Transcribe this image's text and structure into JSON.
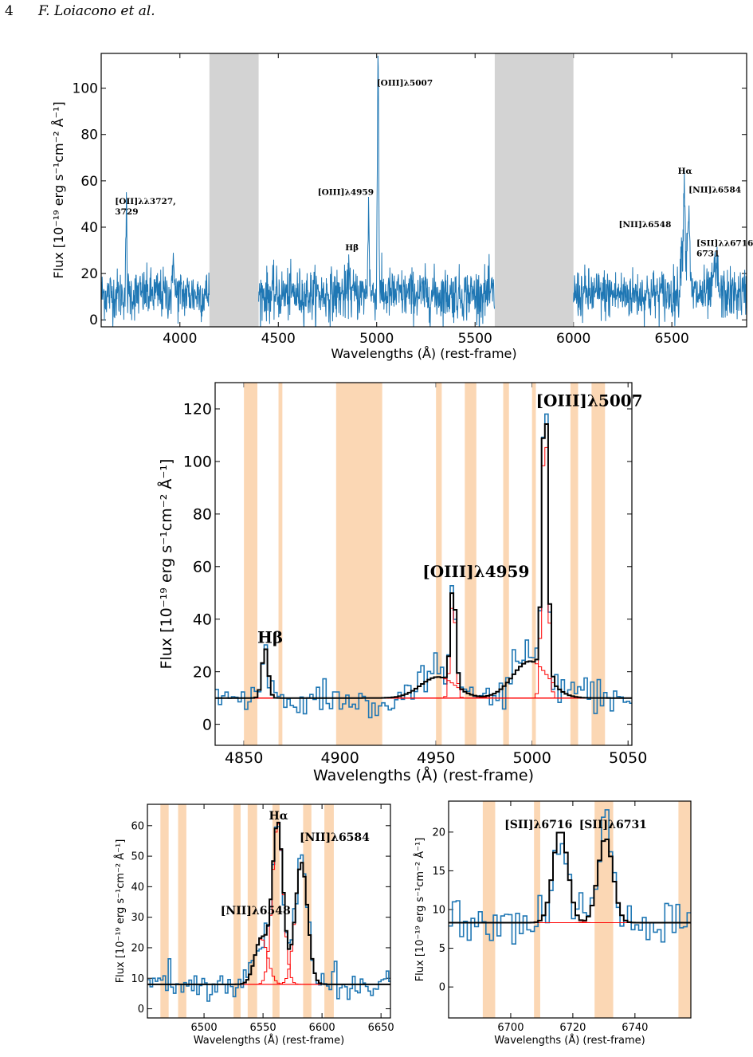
{
  "header": {
    "page_number": "4",
    "authors": "F. Loiacono et al."
  },
  "chart_data": [
    {
      "type": "line",
      "xlabel": "Wavelengths (Å) (rest-frame)",
      "ylabel": "Flux [10⁻¹⁹ erg s⁻¹cm⁻² Å⁻¹]",
      "xlim": [
        3600,
        6880
      ],
      "ylim": [
        -3,
        115
      ],
      "xticks": [
        4000,
        4500,
        5000,
        5500,
        6000,
        6500
      ],
      "yticks": [
        0,
        20,
        40,
        60,
        80,
        100
      ],
      "colors": {
        "spectrum": "#1f77b4",
        "masked": "#d3d3d3"
      },
      "masked_regions": [
        [
          4150,
          4400
        ],
        [
          5600,
          6000
        ]
      ],
      "lines": [
        {
          "name": "[OII]λλ3727, 3729",
          "text": [
            "[OII]λλ3727,",
            "3729"
          ],
          "x": 3728,
          "y": 48,
          "tx": 3670,
          "ty": 50
        },
        {
          "name": "[OIII]λ4959",
          "text": [
            "[OIII]λ4959"
          ],
          "x": 4959,
          "y": 52,
          "tx": 4700,
          "ty": 54
        },
        {
          "name": "Hβ",
          "text": [
            "Hβ"
          ],
          "x": 4861,
          "y": 28,
          "tx": 4840,
          "ty": 30
        },
        {
          "name": "[OIII]λ5007",
          "text": [
            "[OIII]λ5007"
          ],
          "x": 5007,
          "y": 114,
          "tx": 5000,
          "ty": 101
        },
        {
          "name": "Hα",
          "text": [
            "Hα"
          ],
          "x": 6563,
          "y": 62,
          "tx": 6530,
          "ty": 63
        },
        {
          "name": "[NII]λ6584",
          "text": [
            "[NII]λ6584"
          ],
          "x": 6584,
          "y": 56,
          "tx": 6585,
          "ty": 55
        },
        {
          "name": "[NII]λ6548",
          "text": [
            "[NII]λ6548"
          ],
          "x": 6548,
          "y": 40,
          "tx": 6230,
          "ty": 40
        },
        {
          "name": "[SII]λλ6716, 6731",
          "text": [
            "[SII]λλ6716,",
            "6731"
          ],
          "x": 6723,
          "y": 25,
          "tx": 6625,
          "ty": 32
        }
      ],
      "continuum_level": 11
    },
    {
      "type": "line",
      "xlabel": "Wavelengths (Å) (rest-frame)",
      "ylabel": "Flux [10⁻¹⁹ erg s⁻¹cm⁻² Å⁻¹]",
      "xlim": [
        4835,
        5052
      ],
      "ylim": [
        -8,
        130
      ],
      "xticks": [
        4850,
        4900,
        4950,
        5000,
        5050
      ],
      "yticks": [
        0,
        20,
        40,
        60,
        80,
        100,
        120
      ],
      "colors": {
        "data": "#1f77b4",
        "model": "#000000",
        "components": "#ff0000",
        "bands": "#fbd7b4"
      },
      "bands": [
        [
          4850,
          4857
        ],
        [
          4868,
          4870
        ],
        [
          4898,
          4922
        ],
        [
          4950,
          4953
        ],
        [
          4965,
          4971
        ],
        [
          4985,
          4988
        ],
        [
          5000,
          5002
        ],
        [
          5020,
          5024
        ],
        [
          5031,
          5038
        ]
      ],
      "continuum": 10,
      "components": [
        {
          "name": "Hβ",
          "center": 4861,
          "amp": 19,
          "sigma": 1.6
        },
        {
          "name": "[OIII]λ4959",
          "center": 4958.9,
          "amp": 38,
          "sigma": 1.4
        },
        {
          "name": "[OIII]λ4959 broad",
          "center": 4951,
          "amp": 8,
          "sigma": 9
        },
        {
          "name": "[OIII]λ5007",
          "center": 5006.8,
          "amp": 108,
          "sigma": 1.5
        },
        {
          "name": "[OIII]λ5007 broad",
          "center": 4999,
          "amp": 14,
          "sigma": 9
        }
      ],
      "labels": [
        {
          "text": "Hβ",
          "x": 4857,
          "y": 31
        },
        {
          "text": "[OIII]λ4959",
          "x": 4943,
          "y": 56
        },
        {
          "text": "[OIII]λ5007",
          "x": 5002,
          "y": 121
        }
      ]
    },
    {
      "type": "line",
      "xlabel": "Wavelengths (Å) (rest-frame)",
      "ylabel": "Flux [10⁻¹⁹ erg s⁻¹cm⁻² Å⁻¹]",
      "xlim": [
        6452,
        6658
      ],
      "ylim": [
        -3,
        67
      ],
      "xticks": [
        6500,
        6550,
        6600,
        6650
      ],
      "yticks": [
        0,
        10,
        20,
        30,
        40,
        50,
        60
      ],
      "colors": {
        "data": "#1f77b4",
        "model": "#000000",
        "components": "#ff0000",
        "bands": "#fbd7b4"
      },
      "bands": [
        [
          6463,
          6470
        ],
        [
          6478,
          6485
        ],
        [
          6525,
          6531
        ],
        [
          6537,
          6545
        ],
        [
          6558,
          6564
        ],
        [
          6584,
          6591
        ],
        [
          6602,
          6610
        ]
      ],
      "continuum": 8,
      "components": [
        {
          "name": "[NII]λ6548",
          "center": 6548.5,
          "amp": 15,
          "sigma": 5.5
        },
        {
          "name": "Hα",
          "center": 6562.5,
          "amp": 53,
          "sigma": 4.6
        },
        {
          "name": "[NII]λ6584",
          "center": 6582.5,
          "amp": 40,
          "sigma": 5.2
        }
      ],
      "labels": [
        {
          "text": "Hα",
          "x": 6555,
          "y": 62
        },
        {
          "text": "[NII]λ6584",
          "x": 6581,
          "y": 55
        },
        {
          "text": "[NII]λ6548",
          "x": 6514,
          "y": 31
        }
      ]
    },
    {
      "type": "line",
      "xlabel": "Wavelengths (Å) (rest-frame)",
      "ylabel": "Flux [10⁻¹⁹ erg s⁻¹cm⁻² Å⁻¹]",
      "xlim": [
        6680,
        6758
      ],
      "ylim": [
        -4,
        24
      ],
      "xticks": [
        6700,
        6720,
        6740
      ],
      "yticks": [
        0,
        5,
        10,
        15,
        20
      ],
      "colors": {
        "data": "#1f77b4",
        "model": "#000000",
        "components": "#ff0000",
        "bands": "#fbd7b4"
      },
      "bands": [
        [
          6691,
          6695
        ],
        [
          6707.5,
          6709.5
        ],
        [
          6727,
          6733
        ],
        [
          6754,
          6758
        ]
      ],
      "continuum": 8.3,
      "components": [
        {
          "name": "[SII]λ6716",
          "center": 6716,
          "amp": 12,
          "sigma": 2.4
        },
        {
          "name": "[SII]λ6731",
          "center": 6730.5,
          "amp": 11,
          "sigma": 2.4
        }
      ],
      "labels": [
        {
          "text": "[SII]λ6716",
          "x": 6698,
          "y": 20.5
        },
        {
          "text": "[SII]λ6731",
          "x": 6722,
          "y": 20.5
        }
      ]
    }
  ]
}
